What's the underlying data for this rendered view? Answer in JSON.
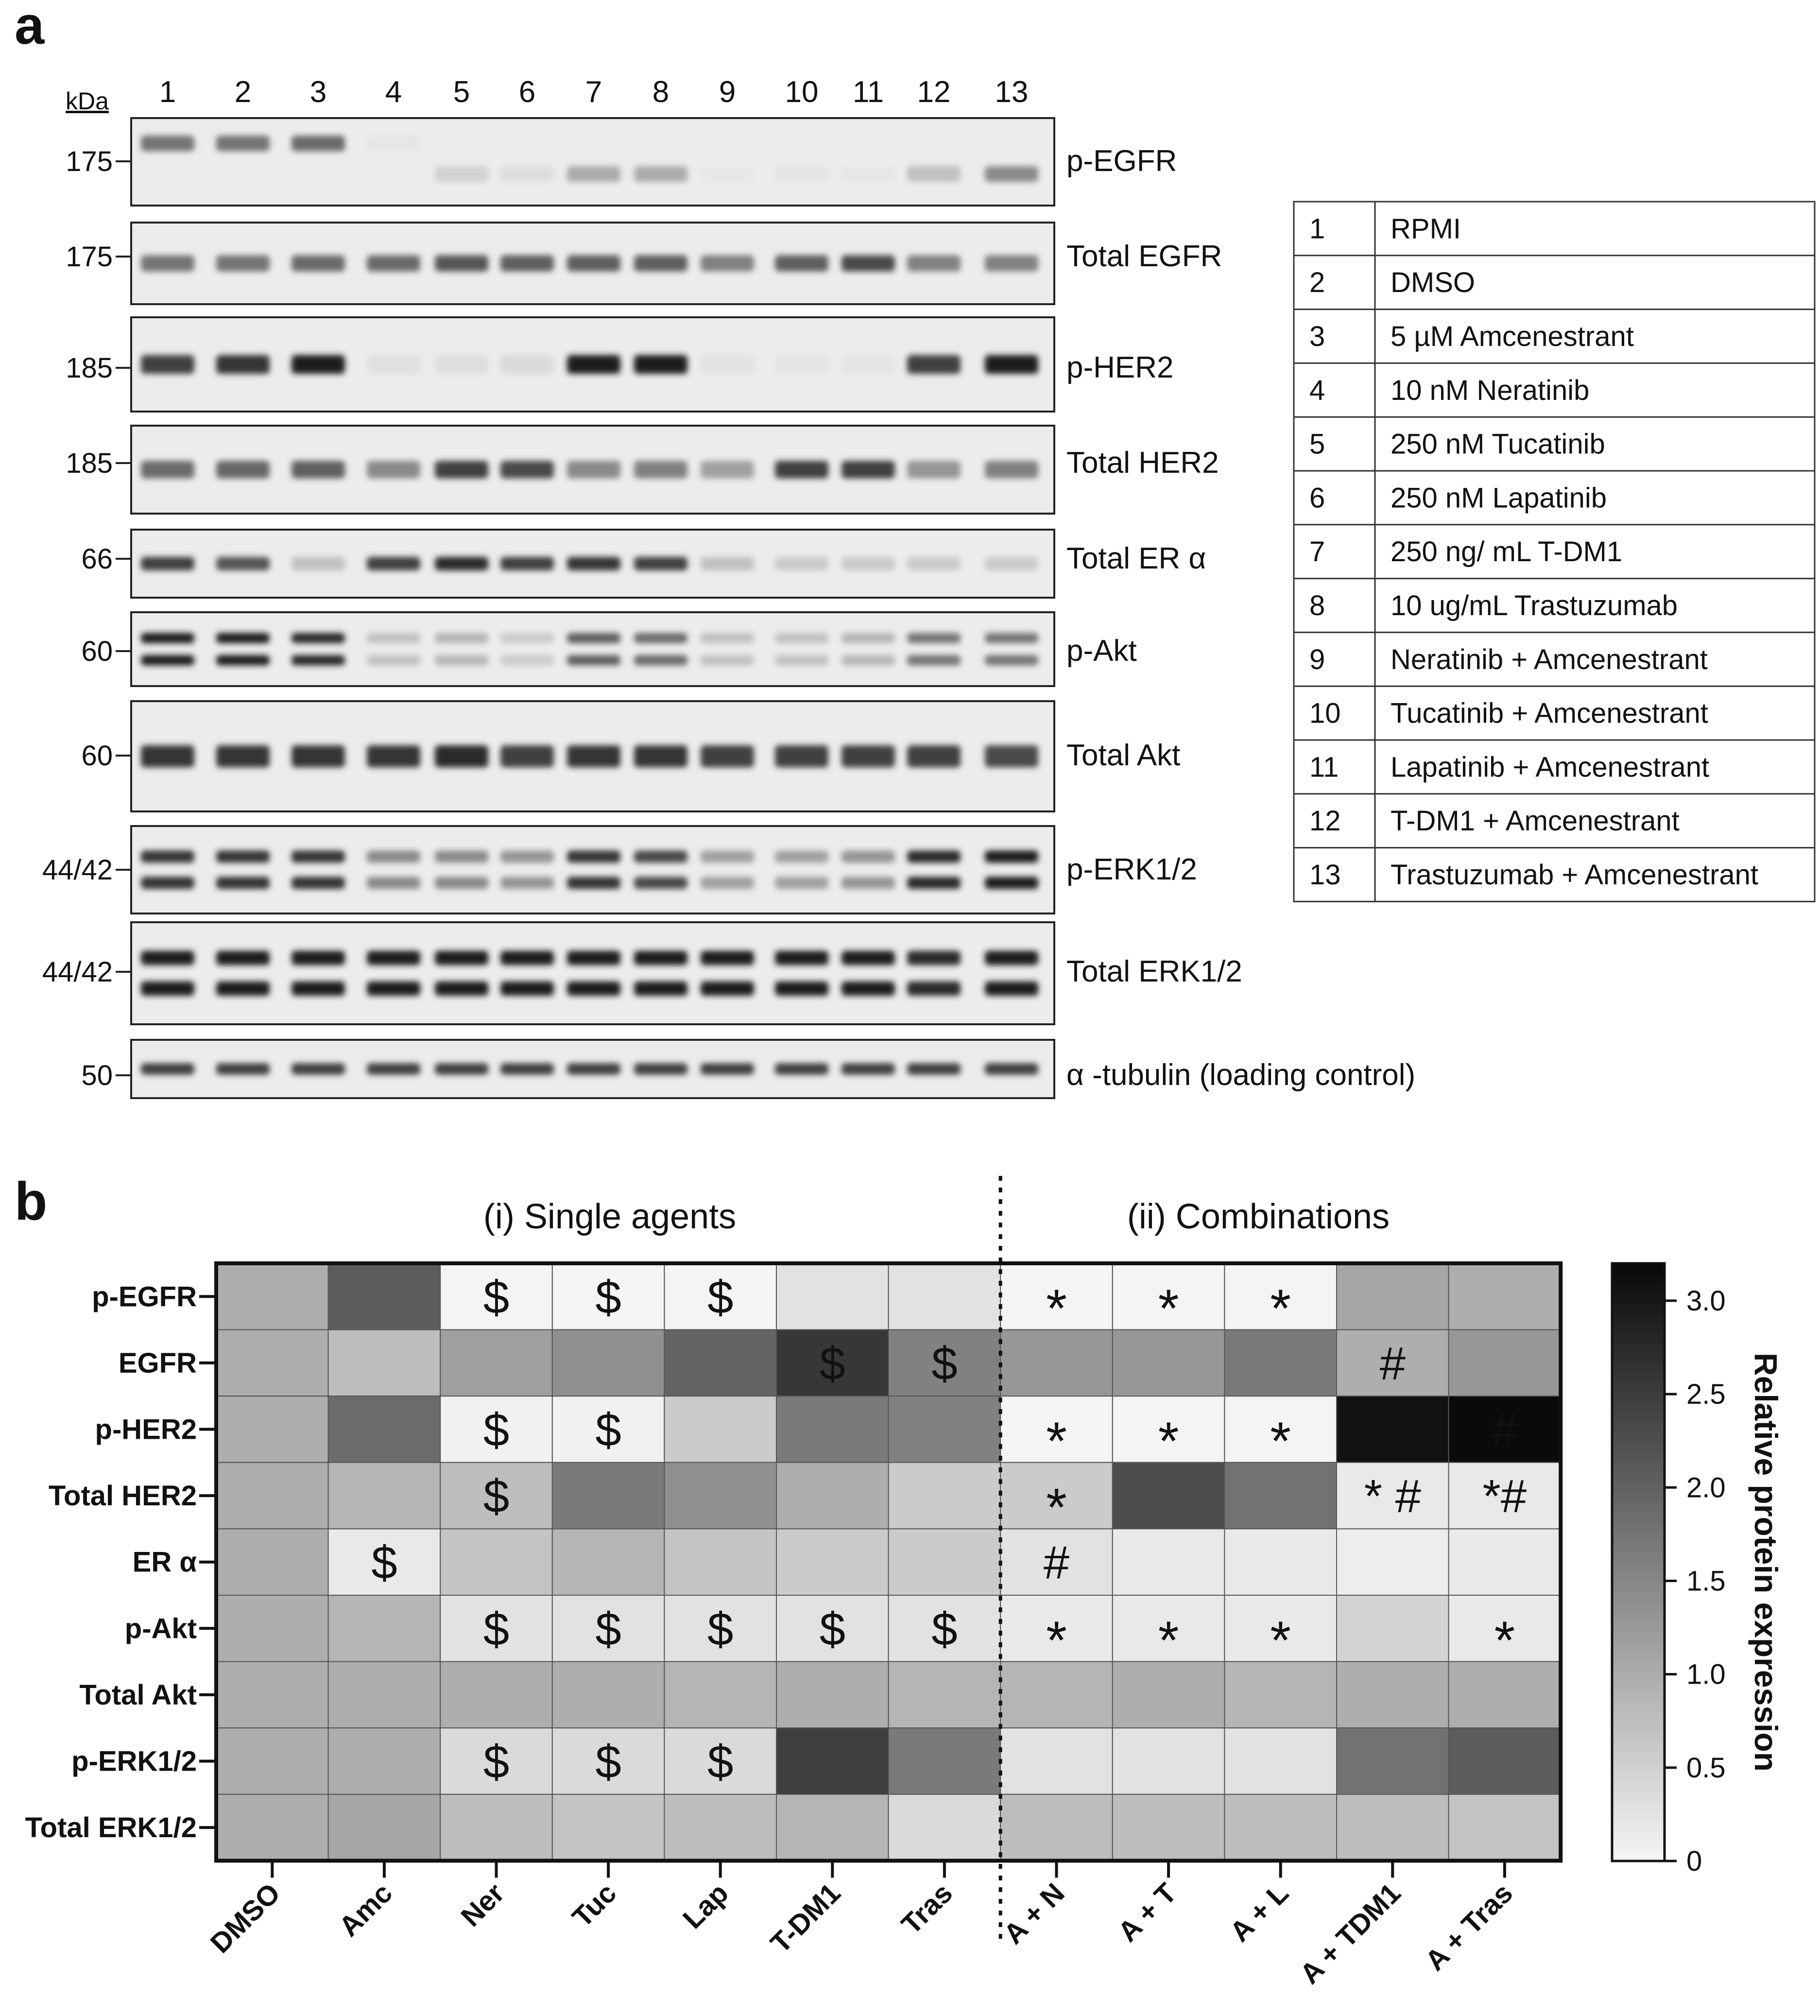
{
  "panel_a": {
    "label": "a",
    "kda_label": "kDa",
    "lane_numbers": [
      "1",
      "2",
      "3",
      "4",
      "5",
      "6",
      "7",
      "8",
      "9",
      "10",
      "11",
      "12",
      "13"
    ],
    "blots": [
      {
        "kda": "175",
        "label": "p-EGFR",
        "type": "p-EGFR",
        "intensity": [
          0.55,
          0.55,
          0.6,
          0.03,
          0.12,
          0.06,
          0.3,
          0.3,
          0.02,
          0.03,
          0.02,
          0.2,
          0.45
        ]
      },
      {
        "kda": "175",
        "label": "Total EGFR",
        "type": "single",
        "intensity": [
          0.55,
          0.55,
          0.6,
          0.6,
          0.7,
          0.65,
          0.65,
          0.65,
          0.5,
          0.65,
          0.75,
          0.5,
          0.5
        ]
      },
      {
        "kda": "185",
        "label": "p-HER2",
        "type": "single",
        "intensity": [
          0.8,
          0.85,
          0.95,
          0.05,
          0.06,
          0.08,
          0.95,
          0.95,
          0.04,
          0.03,
          0.03,
          0.8,
          0.95
        ]
      },
      {
        "kda": "185",
        "label": "Total HER2",
        "type": "single",
        "intensity": [
          0.6,
          0.62,
          0.65,
          0.45,
          0.8,
          0.75,
          0.45,
          0.5,
          0.35,
          0.8,
          0.8,
          0.4,
          0.5
        ]
      },
      {
        "kda": "66",
        "label": "Total ER α",
        "type": "single",
        "intensity": [
          0.8,
          0.7,
          0.2,
          0.8,
          0.9,
          0.8,
          0.85,
          0.8,
          0.2,
          0.15,
          0.15,
          0.15,
          0.15
        ]
      },
      {
        "kda": "60",
        "label": "p-Akt",
        "type": "double",
        "intensity": [
          0.95,
          0.95,
          0.9,
          0.2,
          0.25,
          0.15,
          0.65,
          0.6,
          0.2,
          0.2,
          0.25,
          0.55,
          0.55
        ]
      },
      {
        "kda": "60",
        "label": "Total Akt",
        "type": "single",
        "intensity": [
          0.85,
          0.85,
          0.85,
          0.85,
          0.9,
          0.8,
          0.85,
          0.85,
          0.8,
          0.8,
          0.8,
          0.8,
          0.75
        ]
      },
      {
        "kda": "44/42",
        "label": "p-ERK1/2",
        "type": "double",
        "intensity": [
          0.85,
          0.85,
          0.85,
          0.45,
          0.45,
          0.4,
          0.85,
          0.75,
          0.35,
          0.35,
          0.4,
          0.9,
          0.95
        ]
      },
      {
        "kda": "44/42",
        "label": "Total ERK1/2",
        "type": "double",
        "intensity": [
          0.95,
          0.95,
          0.95,
          0.95,
          0.95,
          0.95,
          0.95,
          0.95,
          0.95,
          0.95,
          0.95,
          0.9,
          0.95
        ]
      },
      {
        "kda": "50",
        "label": "α -tubulin  (loading  control)",
        "type": "single",
        "intensity": [
          0.8,
          0.8,
          0.8,
          0.8,
          0.8,
          0.8,
          0.8,
          0.8,
          0.8,
          0.8,
          0.8,
          0.8,
          0.8
        ]
      }
    ],
    "legend": [
      {
        "num": "1",
        "treatment": "RPMI"
      },
      {
        "num": "2",
        "treatment": "DMSO"
      },
      {
        "num": "3",
        "treatment": "5 µM Amcenestrant"
      },
      {
        "num": "4",
        "treatment": "10 nM Neratinib"
      },
      {
        "num": "5",
        "treatment": "250 nM Tucatinib"
      },
      {
        "num": "6",
        "treatment": "250 nM Lapatinib"
      },
      {
        "num": "7",
        "treatment": "250 ng/ mL T-DM1"
      },
      {
        "num": "8",
        "treatment": "10 ug/mL Trastuzumab"
      },
      {
        "num": "9",
        "treatment": "Neratinib + Amcenestrant"
      },
      {
        "num": "10",
        "treatment": "Tucatinib + Amcenestrant"
      },
      {
        "num": "11",
        "treatment": "Lapatinib + Amcenestrant"
      },
      {
        "num": "12",
        "treatment": "T-DM1 + Amcenestrant"
      },
      {
        "num": "13",
        "treatment": "Trastuzumab + Amcenestrant"
      }
    ]
  },
  "panel_b": {
    "label": "b",
    "group_single": "(i) Single agents",
    "group_combo": "(ii) Combinations",
    "colorbar_title": "Relative protein expression",
    "colorbar_ticks": [
      "0",
      "0.5",
      "1.0",
      "1.5",
      "2.0",
      "2.5",
      "3.0"
    ],
    "rows": [
      "p-EGFR",
      "EGFR",
      "p-HER2",
      "Total HER2",
      "ER α",
      "p-Akt",
      "Total Akt",
      "p-ERK1/2",
      "Total ERK1/2"
    ],
    "cols": [
      "DMSO",
      "Amc",
      "Ner",
      "Tuc",
      "Lap",
      "T-DM1",
      "Tras",
      "A + N",
      "A + T",
      "A + L",
      "A + TDM1",
      "A + Tras"
    ]
  },
  "chart_data": {
    "type": "heatmap",
    "colorbar_range": [
      0,
      3.2
    ],
    "colorbar_label": "Relative protein expression",
    "rows": [
      "p-EGFR",
      "EGFR",
      "p-HER2",
      "Total HER2",
      "ER α",
      "p-Akt",
      "Total Akt",
      "p-ERK1/2",
      "Total ERK1/2"
    ],
    "cols": [
      "DMSO",
      "Amc",
      "Ner",
      "Tuc",
      "Lap",
      "T-DM1",
      "Tras",
      "A + N",
      "A + T",
      "A + L",
      "A + TDM1",
      "A + Tras"
    ],
    "values": [
      [
        1.0,
        2.1,
        0.05,
        0.05,
        0.05,
        0.3,
        0.3,
        0.05,
        0.05,
        0.05,
        1.1,
        1.0
      ],
      [
        1.0,
        0.8,
        1.2,
        1.4,
        2.0,
        2.6,
        1.6,
        1.3,
        1.3,
        1.7,
        1.0,
        1.3
      ],
      [
        1.0,
        1.9,
        0.1,
        0.1,
        0.6,
        1.7,
        1.6,
        0.05,
        0.05,
        0.05,
        3.1,
        3.2
      ],
      [
        1.0,
        0.9,
        0.8,
        1.7,
        1.4,
        1.0,
        0.6,
        0.6,
        2.3,
        1.8,
        0.2,
        0.2
      ],
      [
        1.0,
        0.2,
        0.7,
        0.9,
        0.7,
        0.6,
        0.6,
        0.3,
        0.2,
        0.2,
        0.15,
        0.2
      ],
      [
        1.0,
        0.9,
        0.3,
        0.3,
        0.3,
        0.3,
        0.3,
        0.2,
        0.2,
        0.2,
        0.5,
        0.2
      ],
      [
        1.0,
        1.0,
        1.0,
        1.0,
        0.9,
        1.0,
        0.9,
        0.9,
        1.0,
        0.9,
        1.0,
        1.0
      ],
      [
        1.0,
        1.0,
        0.4,
        0.4,
        0.4,
        2.5,
        1.7,
        0.3,
        0.3,
        0.3,
        1.8,
        2.1
      ],
      [
        1.0,
        1.1,
        0.8,
        0.7,
        0.8,
        0.9,
        0.4,
        0.8,
        0.8,
        0.8,
        0.8,
        0.7
      ]
    ],
    "annotations": [
      [
        "",
        "",
        "$",
        "$",
        "$",
        "",
        "",
        "*",
        "*",
        "*",
        "",
        ""
      ],
      [
        "",
        "",
        "",
        "",
        "",
        "$",
        "$",
        "",
        "",
        "",
        "#",
        ""
      ],
      [
        "",
        "",
        "$",
        "$",
        "",
        "",
        "",
        "*",
        "*",
        "*",
        "",
        "#"
      ],
      [
        "",
        "",
        "$",
        "",
        "",
        "",
        "",
        "*",
        "",
        "",
        "* #",
        "*#"
      ],
      [
        "",
        "$",
        "",
        "",
        "",
        "",
        "",
        "#",
        "",
        "",
        "",
        ""
      ],
      [
        "",
        "",
        "$",
        "$",
        "$",
        "$",
        "$",
        "*",
        "*",
        "*",
        "",
        "*"
      ],
      [
        "",
        "",
        "",
        "",
        "",
        "",
        "",
        "",
        "",
        "",
        "",
        ""
      ],
      [
        "",
        "",
        "$",
        "$",
        "$",
        "",
        "",
        "",
        "",
        "",
        "",
        ""
      ],
      [
        "",
        "",
        "",
        "",
        "",
        "",
        "",
        "",
        "",
        "",
        "",
        ""
      ]
    ]
  }
}
